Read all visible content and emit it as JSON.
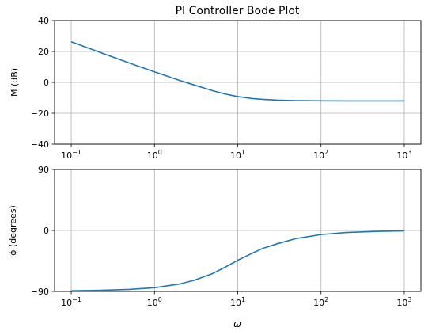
{
  "chart_data": [
    {
      "type": "line",
      "title": "PI Controller Bode Plot",
      "xlabel": "",
      "ylabel": "M (dB)",
      "xscale": "log",
      "xlim": [
        0.1,
        1000
      ],
      "ylim": [
        -40,
        40
      ],
      "grid": true,
      "x_ticks": [
        {
          "value": 0.1,
          "base": "10",
          "exp": "−1"
        },
        {
          "value": 1,
          "base": "10",
          "exp": "0"
        },
        {
          "value": 10,
          "base": "10",
          "exp": "1"
        },
        {
          "value": 100,
          "base": "10",
          "exp": "2"
        },
        {
          "value": 1000,
          "base": "10",
          "exp": "3"
        }
      ],
      "y_ticks": [
        {
          "value": 40,
          "label": "40"
        },
        {
          "value": 20,
          "label": "20"
        },
        {
          "value": 0,
          "label": "0"
        },
        {
          "value": -20,
          "label": "−20"
        },
        {
          "value": -40,
          "label": "−40"
        }
      ],
      "series": [
        {
          "color": "#1f77b4",
          "x": [
            0.1,
            0.2,
            0.5,
            1,
            2,
            3,
            5,
            7,
            10,
            15,
            20,
            30,
            50,
            100,
            200,
            500,
            1000
          ],
          "y": [
            26.3,
            20.3,
            12.5,
            6.8,
            1.3,
            -1.7,
            -5.4,
            -7.5,
            -9.2,
            -10.5,
            -11.0,
            -11.5,
            -11.8,
            -11.95,
            -12.0,
            -12.0,
            -12.0
          ]
        }
      ]
    },
    {
      "type": "line",
      "title": "",
      "xlabel": "ω",
      "ylabel": "ϕ (degrees)",
      "xscale": "log",
      "xlim": [
        0.1,
        1000
      ],
      "ylim": [
        -90,
        90
      ],
      "grid": true,
      "x_ticks": [
        {
          "value": 0.1,
          "base": "10",
          "exp": "−1"
        },
        {
          "value": 1,
          "base": "10",
          "exp": "0"
        },
        {
          "value": 10,
          "base": "10",
          "exp": "1"
        },
        {
          "value": 100,
          "base": "10",
          "exp": "2"
        },
        {
          "value": 1000,
          "base": "10",
          "exp": "3"
        }
      ],
      "y_ticks": [
        {
          "value": 90,
          "label": "90"
        },
        {
          "value": 0,
          "label": "0"
        },
        {
          "value": -90,
          "label": "−90"
        }
      ],
      "series": [
        {
          "color": "#1f77b4",
          "x": [
            0.1,
            0.2,
            0.5,
            1,
            2,
            3,
            4,
            5,
            7,
            10,
            15,
            20,
            30,
            50,
            100,
            200,
            500,
            1000
          ],
          "y": [
            -89.0,
            -88.5,
            -87.0,
            -84.5,
            -79.0,
            -73.5,
            -68.0,
            -63.5,
            -54.5,
            -44.0,
            -33.5,
            -26.5,
            -19.5,
            -12.0,
            -6.0,
            -3.0,
            -1.2,
            -0.6
          ]
        }
      ]
    }
  ]
}
